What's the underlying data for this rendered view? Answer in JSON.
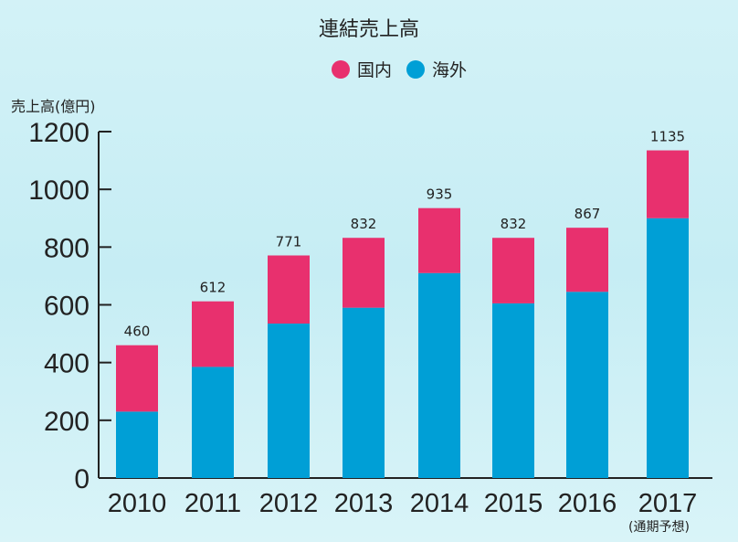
{
  "chart_data": {
    "type": "bar",
    "stacked": true,
    "title": "連結売上高",
    "ylabel": "売上高(億円)",
    "xlabel": "",
    "categories": [
      "2010",
      "2011",
      "2012",
      "2013",
      "2014",
      "2015",
      "2016",
      "2017"
    ],
    "category_note": "(通期予想)",
    "series": [
      {
        "name": "海外",
        "color": "#009fd6",
        "values": [
          230,
          385,
          535,
          590,
          710,
          605,
          645,
          900
        ]
      },
      {
        "name": "国内",
        "color": "#e8306e",
        "values": [
          230,
          227,
          236,
          242,
          225,
          227,
          222,
          235
        ]
      }
    ],
    "totals": [
      460,
      612,
      771,
      832,
      935,
      832,
      867,
      1135
    ],
    "legend": [
      "国内",
      "海外"
    ],
    "ylim": [
      0,
      1200
    ],
    "yticks": [
      0,
      200,
      400,
      600,
      800,
      1000,
      1200
    ],
    "grid": false,
    "legend_position": "top-center"
  }
}
